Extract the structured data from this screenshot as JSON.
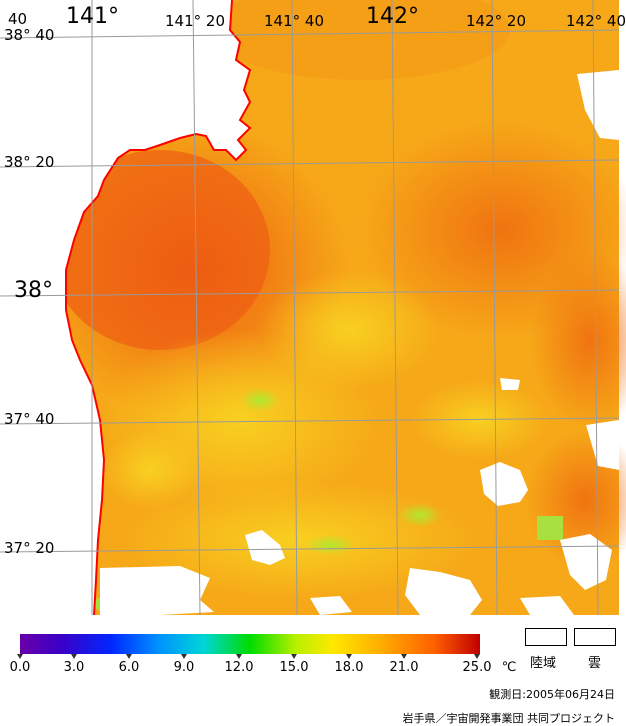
{
  "map": {
    "lon_labels": [
      "141°",
      "141° 20",
      "141° 40",
      "142°",
      "142° 20",
      "142° 40"
    ],
    "lat_labels": [
      "38° 40",
      "38° 20",
      "38°",
      "37° 40",
      "37° 20"
    ],
    "corner_label": "40"
  },
  "colorbar": {
    "ticks": [
      "0.0",
      "3.0",
      "6.0",
      "9.0",
      "12.0",
      "15.0",
      "18.0",
      "21.0",
      "25.0"
    ],
    "unit": "℃"
  },
  "legend": {
    "land_label": "陸域",
    "cloud_label": "雲"
  },
  "footer": {
    "observation_date": "観測日:2005年06月24日",
    "credit": "岩手県／宇宙開発事業団 共同プロジェクト"
  },
  "colors": {
    "coastline": "#ff0000",
    "land": "#ffffff",
    "grid": "#9a9a9a"
  }
}
